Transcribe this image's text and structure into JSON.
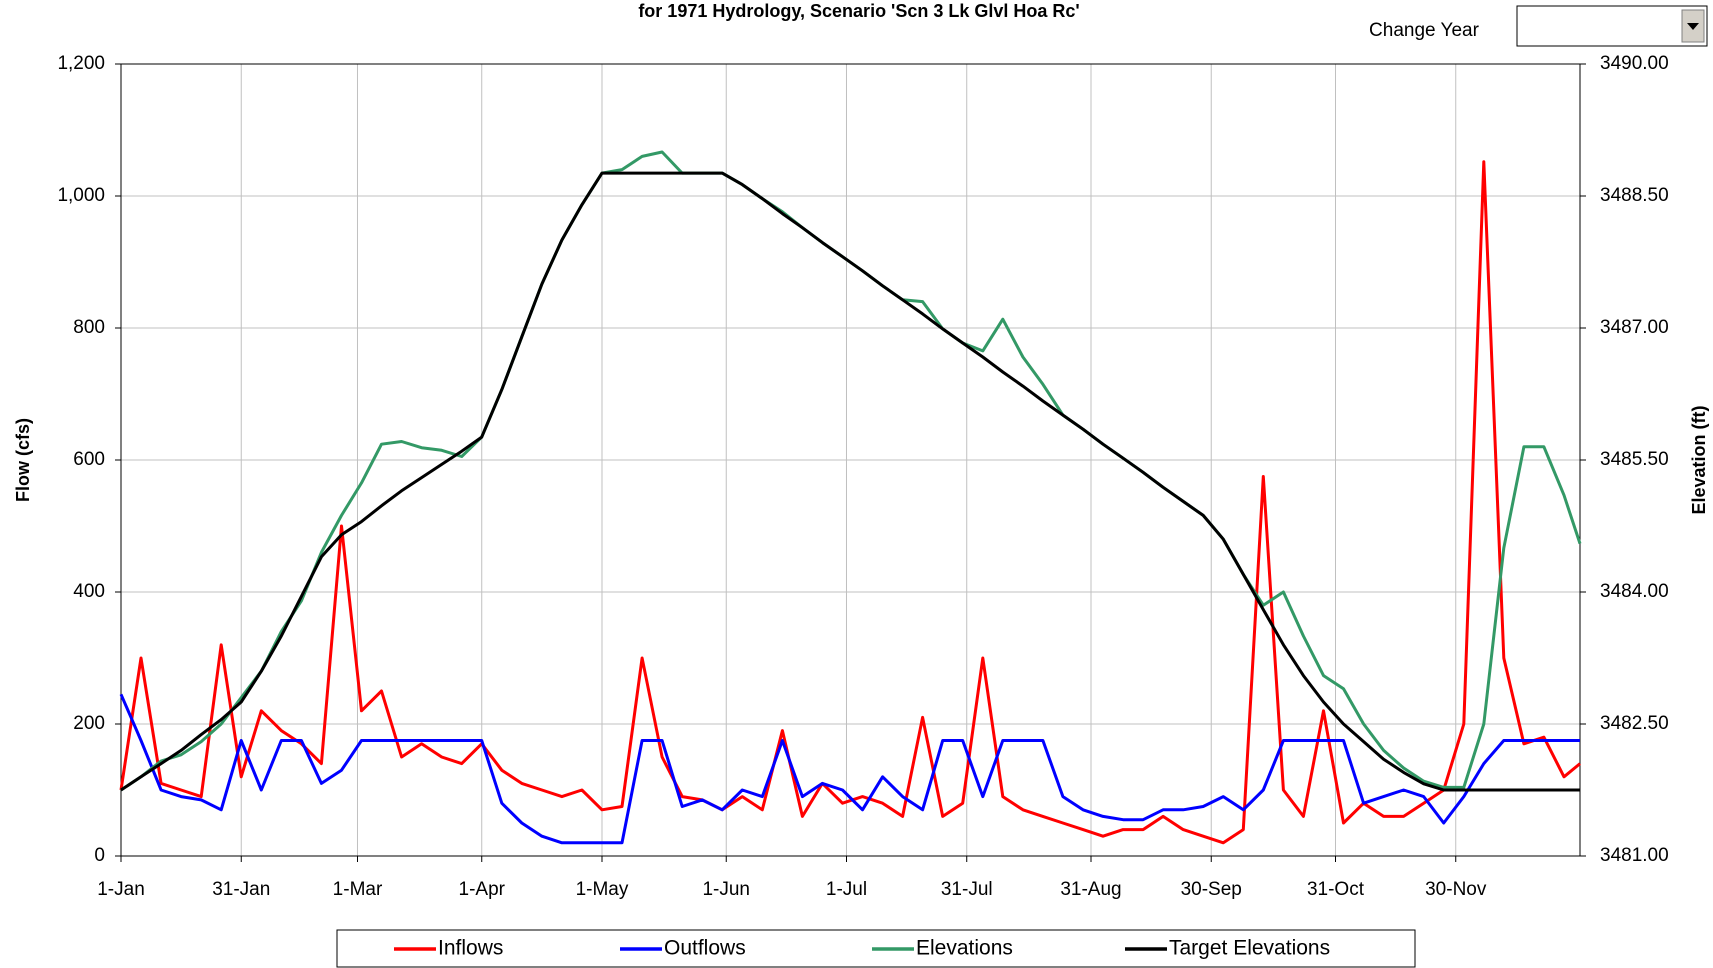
{
  "controls": {
    "change_year_label": "Change Year"
  },
  "chart_data": {
    "type": "line",
    "title": "for 1971 Hydrology, Scenario 'Scn 3 Lk Glvl Hoa Rc'",
    "ylabel": "Flow (cfs)",
    "y2label": "Elevation (ft)",
    "grid": true,
    "legend": "bottom",
    "xlim": [
      0,
      364
    ],
    "xticks": [
      {
        "value": 0,
        "label": "1-Jan"
      },
      {
        "value": 30,
        "label": "31-Jan"
      },
      {
        "value": 59,
        "label": "1-Mar"
      },
      {
        "value": 90,
        "label": "1-Apr"
      },
      {
        "value": 120,
        "label": "1-May"
      },
      {
        "value": 151,
        "label": "1-Jun"
      },
      {
        "value": 181,
        "label": "1-Jul"
      },
      {
        "value": 211,
        "label": "31-Jul"
      },
      {
        "value": 242,
        "label": "31-Aug"
      },
      {
        "value": 272,
        "label": "30-Sep"
      },
      {
        "value": 303,
        "label": "31-Oct"
      },
      {
        "value": 333,
        "label": "30-Nov"
      }
    ],
    "ylim": [
      0,
      1200
    ],
    "yticks": [
      0,
      200,
      400,
      600,
      800,
      {
        "value": 1000,
        "label": "1,000"
      },
      {
        "value": 1200,
        "label": "1,200"
      }
    ],
    "y2lim": [
      3481,
      3490
    ],
    "y2ticks": [
      {
        "value": 3481,
        "label": "3481.00"
      },
      {
        "value": 3482.5,
        "label": "3482.50"
      },
      {
        "value": 3484,
        "label": "3484.00"
      },
      {
        "value": 3485.5,
        "label": "3485.50"
      },
      {
        "value": 3487,
        "label": "3487.00"
      },
      {
        "value": 3488.5,
        "label": "3488.50"
      },
      {
        "value": 3490,
        "label": "3490.00"
      }
    ],
    "x": [
      0,
      5,
      10,
      15,
      20,
      25,
      30,
      35,
      40,
      45,
      50,
      55,
      60,
      65,
      70,
      75,
      80,
      85,
      90,
      95,
      100,
      105,
      110,
      115,
      120,
      125,
      130,
      135,
      140,
      145,
      150,
      155,
      160,
      165,
      170,
      175,
      180,
      185,
      190,
      195,
      200,
      205,
      210,
      215,
      220,
      225,
      230,
      235,
      240,
      245,
      250,
      255,
      260,
      265,
      270,
      275,
      280,
      285,
      290,
      295,
      300,
      305,
      310,
      315,
      320,
      325,
      330,
      335,
      340,
      345,
      350,
      355,
      360,
      364
    ],
    "series": [
      {
        "name": "Inflows",
        "color": "#ff0000",
        "values": [
          100,
          300,
          110,
          100,
          90,
          320,
          120,
          220,
          190,
          170,
          140,
          500,
          220,
          250,
          150,
          170,
          150,
          140,
          170,
          130,
          110,
          100,
          90,
          100,
          70,
          75,
          300,
          150,
          90,
          85,
          70,
          90,
          70,
          190,
          60,
          110,
          80,
          90,
          80,
          60,
          210,
          60,
          80,
          300,
          90,
          70,
          60,
          50,
          40,
          30,
          40,
          40,
          60,
          40,
          30,
          20,
          40,
          575,
          100,
          60,
          220,
          50,
          80,
          60,
          60,
          80,
          100,
          200,
          1052,
          300,
          170,
          180,
          120,
          140
        ]
      },
      {
        "name": "Outflows",
        "color": "#0000ff",
        "values": [
          245,
          175,
          100,
          90,
          85,
          70,
          175,
          100,
          175,
          175,
          110,
          130,
          175,
          175,
          175,
          175,
          175,
          175,
          175,
          80,
          50,
          30,
          20,
          20,
          20,
          20,
          175,
          175,
          75,
          85,
          70,
          100,
          90,
          175,
          90,
          110,
          100,
          70,
          120,
          90,
          70,
          175,
          175,
          90,
          175,
          175,
          175,
          90,
          70,
          60,
          55,
          55,
          70,
          70,
          75,
          90,
          70,
          100,
          175,
          175,
          175,
          175,
          80,
          90,
          100,
          90,
          50,
          90,
          140,
          175,
          175,
          175,
          175,
          175
        ]
      },
      {
        "name": "Elevations",
        "color": "#339966",
        "axis": "y2",
        "values": [
          3481.75,
          3481.9,
          3482.08,
          3482.15,
          3482.3,
          3482.5,
          3482.8,
          3483.1,
          3483.55,
          3483.9,
          3484.45,
          3484.87,
          3485.24,
          3485.68,
          3485.71,
          3485.64,
          3485.61,
          3485.54,
          3485.76,
          3486.3,
          3486.9,
          3487.5,
          3488.0,
          3488.4,
          3488.76,
          3488.8,
          3488.95,
          3489.0,
          3488.76,
          3488.76,
          3488.76,
          3488.63,
          3488.47,
          3488.32,
          3488.14,
          3487.97,
          3487.81,
          3487.65,
          3487.48,
          3487.32,
          3487.3,
          3486.99,
          3486.83,
          3486.74,
          3487.1,
          3486.67,
          3486.36,
          3486.01,
          3485.85,
          3485.68,
          3485.52,
          3485.36,
          3485.19,
          3485.03,
          3484.87,
          3484.6,
          3484.2,
          3483.85,
          3484.0,
          3483.5,
          3483.05,
          3482.9,
          3482.5,
          3482.2,
          3482.0,
          3481.85,
          3481.78,
          3481.78,
          3482.5,
          3484.5,
          3485.65,
          3485.65,
          3485.1,
          3484.55
        ]
      },
      {
        "name": "Target Elevations",
        "color": "#000000",
        "axis": "y2",
        "values": [
          3481.75,
          3481.9,
          3482.05,
          3482.2,
          3482.38,
          3482.55,
          3482.75,
          3483.1,
          3483.5,
          3483.95,
          3484.4,
          3484.65,
          3484.8,
          3484.98,
          3485.15,
          3485.3,
          3485.45,
          3485.6,
          3485.76,
          3486.3,
          3486.9,
          3487.5,
          3488.0,
          3488.4,
          3488.76,
          3488.76,
          3488.76,
          3488.76,
          3488.76,
          3488.76,
          3488.76,
          3488.63,
          3488.47,
          3488.3,
          3488.14,
          3487.97,
          3487.81,
          3487.65,
          3487.48,
          3487.32,
          3487.16,
          3486.99,
          3486.83,
          3486.67,
          3486.5,
          3486.34,
          3486.17,
          3486.01,
          3485.85,
          3485.68,
          3485.52,
          3485.36,
          3485.19,
          3485.03,
          3484.87,
          3484.6,
          3484.2,
          3483.8,
          3483.4,
          3483.05,
          3482.75,
          3482.5,
          3482.3,
          3482.1,
          3481.95,
          3481.82,
          3481.75,
          3481.75,
          3481.75,
          3481.75,
          3481.75,
          3481.75,
          3481.75,
          3481.75
        ]
      }
    ]
  }
}
